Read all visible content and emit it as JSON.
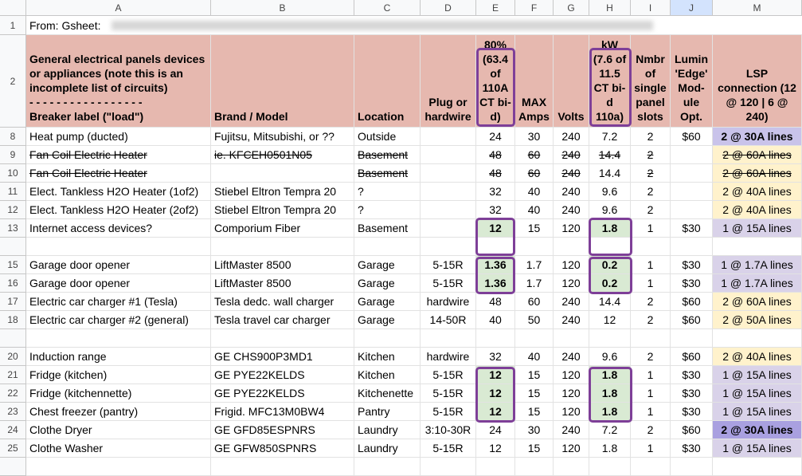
{
  "columns": [
    "A",
    "B",
    "C",
    "D",
    "E",
    "F",
    "G",
    "H",
    "I",
    "J",
    "M"
  ],
  "note": {
    "row": "1",
    "text": "From: Gsheet:"
  },
  "header": {
    "row": "2",
    "cells": [
      "General electrical panels devices or appliances (note this is an incomplete list of circuits)\n- - - - - - - - - - - - - - - - -\nBreaker label (\"load\")",
      "Brand / Model",
      "Location",
      "Plug or hardwire",
      "80% (63.4 of 110A CT bi-d)",
      "MAX Amps",
      "Volts",
      "kW (7.6 of 11.5 CT bi-d 110a)",
      "Nmbr of single panel slots",
      "Lumin 'Edge' Mod-ule Opt.",
      "LSP connection (12 @ 120 | 6 @ 240)"
    ]
  },
  "rows": [
    {
      "row": "8",
      "cells": [
        "Heat pump (ducted)",
        "Fujitsu, Mitsubishi, or ??",
        "Outside",
        null,
        "24",
        "30",
        "240",
        "7.2",
        "2",
        "$60",
        "2 @ 30A lines"
      ]
    },
    {
      "row": "9",
      "cells": [
        "Fan Coil Electric Heater",
        "ie. KFCEH0501N05",
        "Basement",
        null,
        "48",
        "60",
        "240",
        "14.4",
        "2",
        null,
        "2 @ 60A lines"
      ]
    },
    {
      "row": "10",
      "cells": [
        "Fan Coil Electric Heater",
        null,
        "Basement",
        null,
        "48",
        "60",
        "240",
        "14.4",
        "2",
        null,
        "2 @ 60A lines"
      ]
    },
    {
      "row": "11",
      "cells": [
        "Elect. Tankless H2O Heater (1of2)",
        "Stiebel Eltron Tempra 20",
        "?",
        null,
        "32",
        "40",
        "240",
        "9.6",
        "2",
        null,
        "2 @ 40A lines"
      ]
    },
    {
      "row": "12",
      "cells": [
        "Elect. Tankless H2O Heater (2of2)",
        "Stiebel Eltron Tempra 20",
        "?",
        null,
        "32",
        "40",
        "240",
        "9.6",
        "2",
        null,
        "2 @ 40A lines"
      ]
    },
    {
      "row": "13",
      "cells": [
        "Internet access devices?",
        "Comporium Fiber",
        "Basement",
        null,
        "12",
        "15",
        "120",
        "1.8",
        "1",
        "$30",
        "1 @ 15A lines"
      ]
    },
    null,
    {
      "row": "15",
      "cells": [
        "Garage door opener",
        "LiftMaster 8500",
        "Garage",
        "5-15R",
        "1.36",
        "1.7",
        "120",
        "0.2",
        "1",
        "$30",
        "1 @ 1.7A lines"
      ]
    },
    {
      "row": "16",
      "cells": [
        "Garage door opener",
        "LiftMaster 8500",
        "Garage",
        "5-15R",
        "1.36",
        "1.7",
        "120",
        "0.2",
        "1",
        "$30",
        "1 @ 1.7A lines"
      ]
    },
    {
      "row": "17",
      "cells": [
        "Electric car charger #1 (Tesla)",
        "Tesla dedc. wall charger",
        "Garage",
        "hardwire",
        "48",
        "60",
        "240",
        "14.4",
        "2",
        "$60",
        "2 @ 60A lines"
      ]
    },
    {
      "row": "18",
      "cells": [
        "Electric car charger #2 (general)",
        "Tesla travel car charger",
        "Garage",
        "14-50R",
        "40",
        "50",
        "240",
        "12",
        "2",
        "$60",
        "2 @ 50A lines"
      ]
    },
    null,
    {
      "row": "20",
      "cells": [
        "Induction range",
        "GE CHS900P3MD1",
        "Kitchen",
        "hardwire",
        "32",
        "40",
        "240",
        "9.6",
        "2",
        "$60",
        "2 @ 40A lines"
      ]
    },
    {
      "row": "21",
      "cells": [
        "Fridge (kitchen)",
        "GE PYE22KELDS",
        "Kitchen",
        "5-15R",
        "12",
        "15",
        "120",
        "1.8",
        "1",
        "$30",
        "1 @ 15A lines"
      ]
    },
    {
      "row": "22",
      "cells": [
        "Fridge (kitchennette)",
        "GE PYE22KELDS",
        "Kitchenette",
        "5-15R",
        "12",
        "15",
        "120",
        "1.8",
        "1",
        "$30",
        "1 @ 15A lines"
      ]
    },
    {
      "row": "23",
      "cells": [
        "Chest freezer (pantry)",
        "Frigid. MFC13M0BW4",
        "Pantry",
        "5-15R",
        "12",
        "15",
        "120",
        "1.8",
        "1",
        "$30",
        "1 @ 15A lines"
      ]
    },
    {
      "row": "24",
      "cells": [
        "Clothe Dryer",
        "GE GFD85ESPNRS",
        "Laundry",
        "3:10-30R",
        "24",
        "30",
        "240",
        "7.2",
        "2",
        "$60",
        "2 @ 30A lines"
      ]
    },
    {
      "row": "25",
      "cells": [
        "Clothe Washer",
        "GE GFW850SPNRS",
        "Laundry",
        "5-15R",
        "12",
        "15",
        "120",
        "1.8",
        "1",
        "$30",
        "1 @ 15A lines"
      ]
    }
  ]
}
